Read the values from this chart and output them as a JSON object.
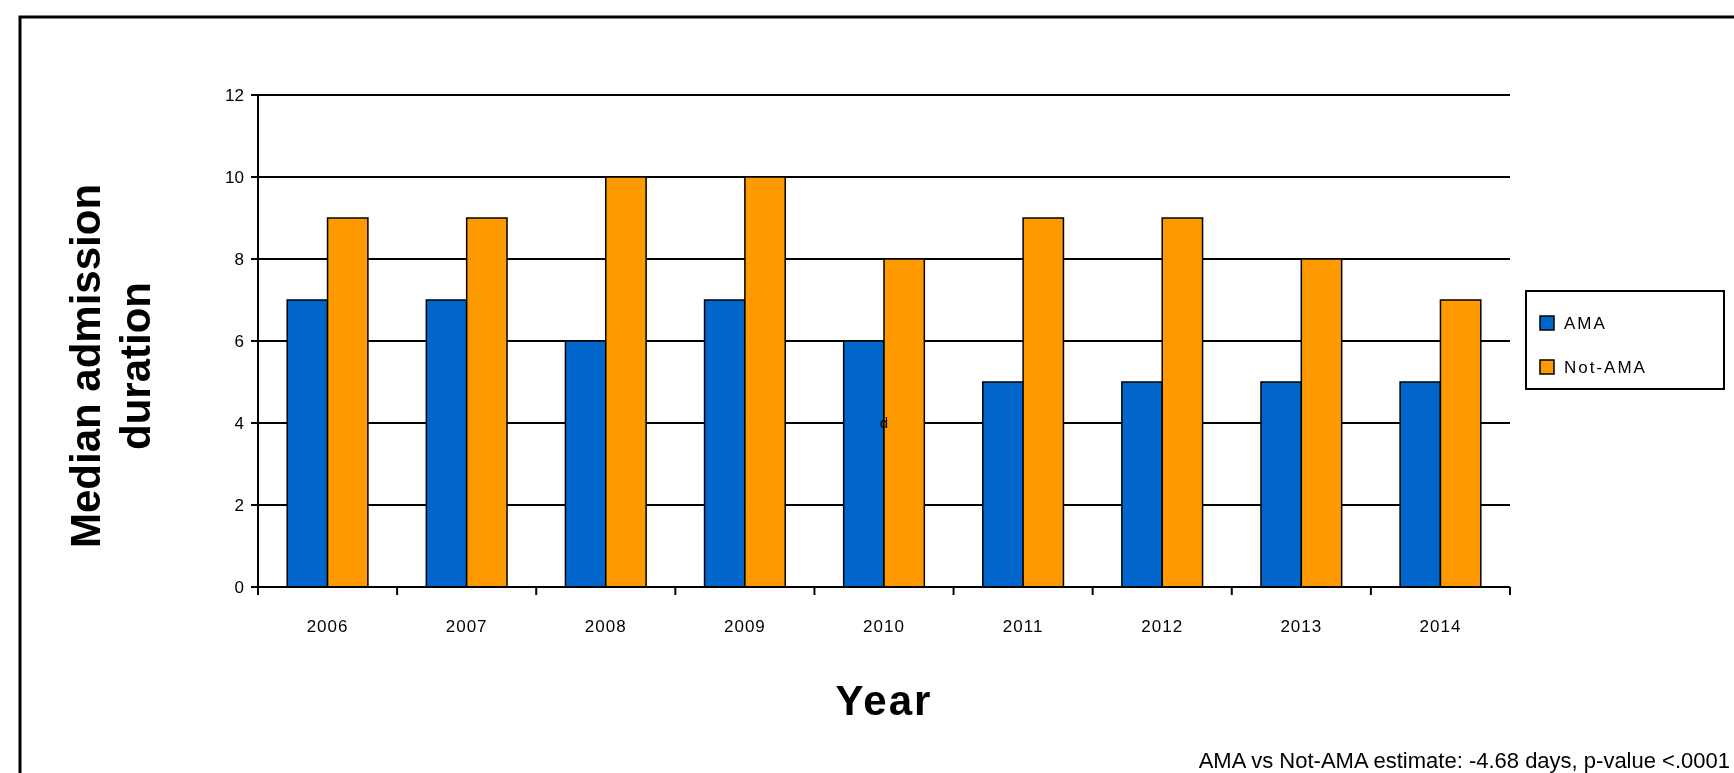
{
  "chart_data": {
    "type": "bar",
    "xlabel": "Year",
    "ylabel": "Median admission duration",
    "categories": [
      "2006",
      "2007",
      "2008",
      "2009",
      "2010",
      "2011",
      "2012",
      "2013",
      "2014"
    ],
    "series": [
      {
        "name": "AMA",
        "color": "#0066cc",
        "values": [
          7,
          7,
          6,
          7,
          6,
          5,
          5,
          5,
          5
        ]
      },
      {
        "name": "Not-AMA",
        "color": "#ff9900",
        "values": [
          9,
          9,
          10,
          10,
          8,
          9,
          9,
          8,
          7
        ]
      }
    ],
    "ylim": [
      0,
      12
    ],
    "yticks": [
      0,
      2,
      4,
      6,
      8,
      10,
      12
    ],
    "grid": "y",
    "legend": "right",
    "annotations": [
      {
        "text": "d",
        "x": "2010",
        "y": 4
      },
      "AMA vs Not-AMA estimate: -4.68 days, p-value <.0001"
    ]
  }
}
